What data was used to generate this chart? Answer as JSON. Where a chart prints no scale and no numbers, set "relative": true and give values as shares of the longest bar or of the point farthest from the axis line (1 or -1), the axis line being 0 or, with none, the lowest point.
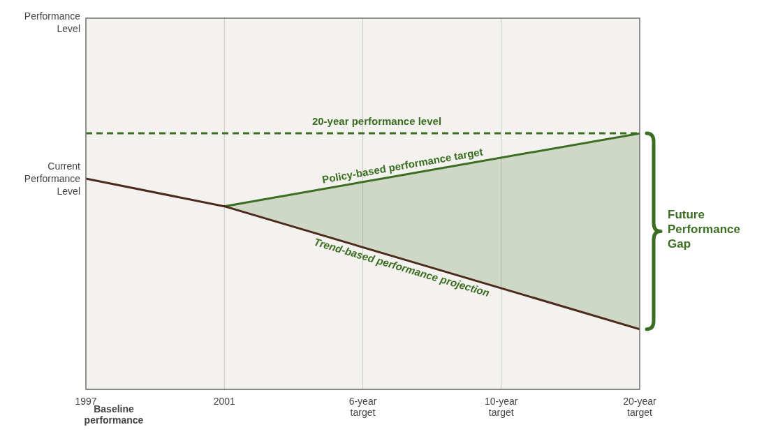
{
  "chart_data": {
    "type": "line",
    "relative": true,
    "categories": [
      "1997",
      "2001",
      "6-year target",
      "10-year target",
      "20-year target"
    ],
    "grid": "x",
    "line_style": "solid",
    "series": [
      {
        "name": "Policy-based performance target",
        "color": "#3b6e22",
        "values": [
          null,
          0.715,
          null,
          null,
          1
        ],
        "lower": [
          null,
          0.715,
          null,
          null,
          0.235
        ],
        "upper": [
          null,
          0.715,
          null,
          null,
          1
        ]
      },
      {
        "name": "Trend-based performance projection",
        "color": "#4b2a1c",
        "values": [
          0.823,
          0.715,
          null,
          null,
          0.235
        ]
      }
    ],
    "ref_lines": [
      {
        "axis": "y",
        "value": 1,
        "label": "20-year performance level",
        "color": "#3b6e22",
        "line_style": "dashed"
      }
    ],
    "annotations": [
      "Performance Level",
      {
        "text": "Current Performance Level",
        "x": "1997",
        "y": 0.823
      },
      "Baseline performance",
      "Future Performance Gap"
    ]
  }
}
